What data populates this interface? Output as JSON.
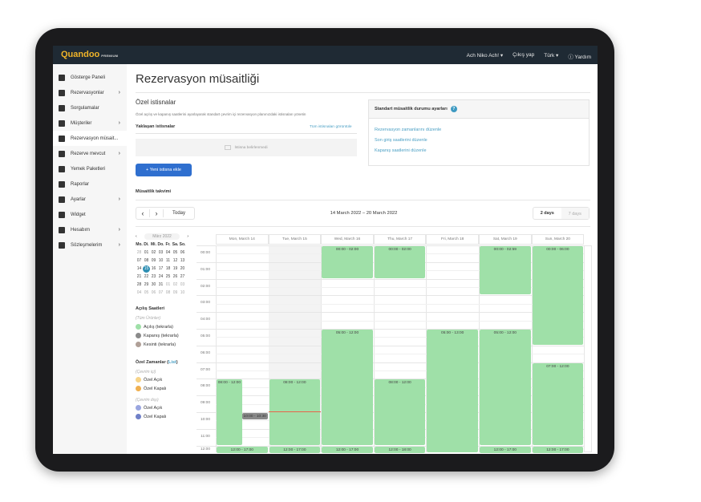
{
  "topbar": {
    "brand": "Quandoo",
    "brand_tag": "PREMIUM",
    "user": "Ach Niko Ach! ▾",
    "logout": "Çıkış yap",
    "language": "Türk ▾",
    "help": "ⓘ Yardım"
  },
  "sidebar": {
    "items": [
      {
        "label": "Gösterge Paneli",
        "icon": "dashboard-icon",
        "chev": false
      },
      {
        "label": "Rezervasyonlar",
        "icon": "list-icon",
        "chev": true
      },
      {
        "label": "Sorgulamalar",
        "icon": "mail-icon",
        "chev": false
      },
      {
        "label": "Müşteriler",
        "icon": "people-icon",
        "chev": true
      },
      {
        "label": "Rezervasyon müsait...",
        "icon": "calendar-icon",
        "chev": false,
        "active": true
      },
      {
        "label": "Rezerve mevcut",
        "icon": "table-icon",
        "chev": true
      },
      {
        "label": "Yemek Paketleri",
        "icon": "cutlery-icon",
        "chev": false
      },
      {
        "label": "Raporlar",
        "icon": "report-icon",
        "chev": false
      },
      {
        "label": "Ayarlar",
        "icon": "gear-icon",
        "chev": true
      },
      {
        "label": "Widget",
        "icon": "diamond-icon",
        "chev": false
      },
      {
        "label": "Hesabım",
        "icon": "person-icon",
        "chev": true
      },
      {
        "label": "Sözleşmelerim",
        "icon": "document-icon",
        "chev": true
      }
    ]
  },
  "page": {
    "title": "Rezervasyon müsaitliği"
  },
  "exceptions": {
    "title": "Özel istisnalar",
    "desc": "Özel açılış ve kapanış saatlerini ayarlayarak standart çevrim içi rezervasyon planınızdaki istisnaları yönetin",
    "upcoming": "Yaklaşan istisnalar",
    "view_all": "Tüm istisnaları görüntüle",
    "empty": "İstisna belirlenmedi",
    "add": "+ Yeni istisna ekle"
  },
  "settings": {
    "title": "Standart müsaitlik durumu ayarları",
    "links": [
      "Rezervasyon zamanlarını düzenle",
      "Son giriş saatlerini düzenle",
      "Kapanış saatlerini düzenle"
    ]
  },
  "calendar": {
    "title": "Müsaitlik takvimi",
    "today": "Today",
    "range": "14 March 2022 – 20 March 2022",
    "view2": "2 days",
    "view7": "7 days",
    "days": [
      "Mon, March 14",
      "Tue, March 15",
      "Wed, March 16",
      "Thu, March 17",
      "Fri, March 18",
      "Sat, March 19",
      "Sun, March 20"
    ],
    "hours": [
      "00:00",
      "01:00",
      "02:00",
      "03:00",
      "04:00",
      "05:00",
      "06:00",
      "07:00",
      "08:00",
      "09:00",
      "10:00",
      "11:00",
      "12:00"
    ],
    "events": [
      {
        "day": 0,
        "label": "08:00 - 12:00",
        "start": 8,
        "end": 12,
        "half": "left"
      },
      {
        "day": 0,
        "label": "10:00 - 10:30",
        "start": 10,
        "end": 10.5,
        "half": "right",
        "type": "gray"
      },
      {
        "day": 0,
        "label": "12:00 - 17:00",
        "start": 12,
        "end": 17
      },
      {
        "day": 1,
        "label": "08:00 - 12:00",
        "start": 8,
        "end": 12
      },
      {
        "day": 1,
        "label": "12:00 - 17:00",
        "start": 12,
        "end": 17
      },
      {
        "day": 2,
        "label": "00:00 - 02:00",
        "start": 0,
        "end": 2
      },
      {
        "day": 2,
        "label": "05:00 - 12:00",
        "start": 5,
        "end": 12
      },
      {
        "day": 2,
        "label": "12:00 - 17:00",
        "start": 12,
        "end": 17
      },
      {
        "day": 3,
        "label": "00:00 - 02:00",
        "start": 0,
        "end": 2
      },
      {
        "day": 3,
        "label": "08:00 - 12:00",
        "start": 8,
        "end": 12
      },
      {
        "day": 3,
        "label": "12:00 - 18:00",
        "start": 12,
        "end": 18
      },
      {
        "day": 4,
        "label": "05:00 - 13:00",
        "start": 5,
        "end": 13
      },
      {
        "day": 5,
        "label": "00:00 - 02:59",
        "start": 0,
        "end": 3
      },
      {
        "day": 5,
        "label": "05:00 - 12:00",
        "start": 5,
        "end": 12
      },
      {
        "day": 5,
        "label": "12:00 - 17:00",
        "start": 12,
        "end": 17
      },
      {
        "day": 6,
        "label": "00:00 - 06:00",
        "start": 0,
        "end": 6
      },
      {
        "day": 6,
        "label": "07:00 - 12:00",
        "start": 7,
        "end": 12
      },
      {
        "day": 6,
        "label": "12:00 - 17:00",
        "start": 12,
        "end": 17
      }
    ],
    "colors": {
      "open": "#9fe0a8",
      "closed": "#8a8a8a",
      "today_bg": "#f3f3f3",
      "now_line": "#e8664a"
    }
  },
  "mini_cal": {
    "month": "Mārz 2022",
    "weekdays": [
      "Mo.",
      "Di.",
      "Mi.",
      "Do.",
      "Fr.",
      "Sa.",
      "So."
    ],
    "weeks": [
      [
        "28",
        "01",
        "02",
        "03",
        "04",
        "05",
        "06"
      ],
      [
        "07",
        "08",
        "09",
        "10",
        "11",
        "12",
        "13"
      ],
      [
        "14",
        "15",
        "16",
        "17",
        "18",
        "19",
        "20"
      ],
      [
        "21",
        "22",
        "23",
        "24",
        "25",
        "26",
        "27"
      ],
      [
        "28",
        "29",
        "30",
        "31",
        "01",
        "02",
        "03"
      ],
      [
        "04",
        "05",
        "06",
        "07",
        "08",
        "09",
        "10"
      ]
    ],
    "today": "15"
  },
  "legend": {
    "opening_title": "Açılış Saatleri",
    "all_products": "(Tüm Ürünler)",
    "items": [
      {
        "label": "Açılış (tekrarla)",
        "color": "#9fe0a8"
      },
      {
        "label": "Kapanış (tekrarla)",
        "color": "#8a8a8a"
      },
      {
        "label": "Kesinti (tekrarla)",
        "color": "#b0a098"
      }
    ],
    "special_title": "Özel Zamanlar (",
    "special_link": "List",
    "special_close": ")",
    "online": "(Çevrim içi)",
    "online_items": [
      {
        "label": "Özel Açık",
        "color": "#f7d488"
      },
      {
        "label": "Özel Kapalı",
        "color": "#f0b050"
      }
    ],
    "offline": "(Çevrim dışı)",
    "offline_items": [
      {
        "label": "Özel Açık",
        "color": "#9aa6e0"
      },
      {
        "label": "Özel Kapalı",
        "color": "#7080c8"
      }
    ]
  }
}
